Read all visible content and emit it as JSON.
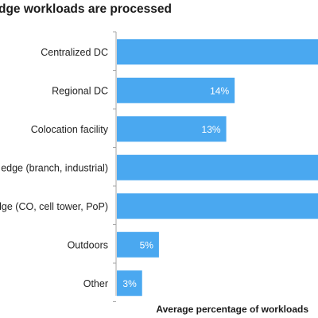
{
  "chart_data": {
    "type": "bar",
    "orientation": "horizontal",
    "title": "dge workloads are processed",
    "xlabel": "Average percentage of workloads",
    "ylabel": "",
    "categories": [
      "Centralized DC",
      "Regional DC",
      "Colocation facility",
      "e edge (branch, industrial)",
      "edge (CO, cell tower, PoP)",
      "Outdoors",
      "Other"
    ],
    "values": [
      24,
      14,
      13,
      24,
      24,
      5,
      3
    ],
    "data_labels": [
      "",
      "14%",
      "13%",
      "",
      "",
      "5%",
      "3%"
    ],
    "xlim": [
      0,
      24
    ],
    "grid": false,
    "legend": "none",
    "bar_color": "#4aa8f0",
    "label_color": "#ffffff"
  }
}
